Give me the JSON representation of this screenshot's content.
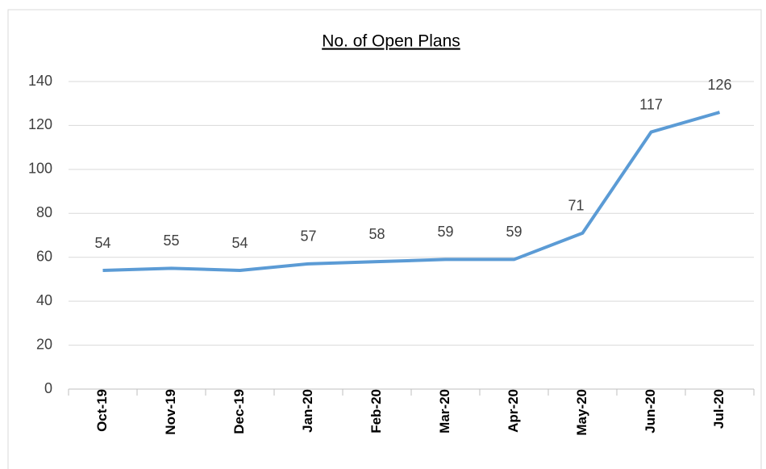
{
  "chart_data": {
    "type": "line",
    "title": "No. of Open Plans",
    "categories": [
      "Oct-19",
      "Nov-19",
      "Dec-19",
      "Jan-20",
      "Feb-20",
      "Mar-20",
      "Apr-20",
      "May-20",
      "Jun-20",
      "Jul-20"
    ],
    "series": [
      {
        "name": "No. of Open Plans",
        "color": "#5b9bd5",
        "values": [
          54,
          55,
          54,
          57,
          58,
          59,
          59,
          71,
          117,
          126
        ]
      }
    ],
    "ylim": [
      0,
      140
    ],
    "yticks": [
      0,
      20,
      40,
      60,
      80,
      100,
      120,
      140
    ],
    "grid": true
  }
}
